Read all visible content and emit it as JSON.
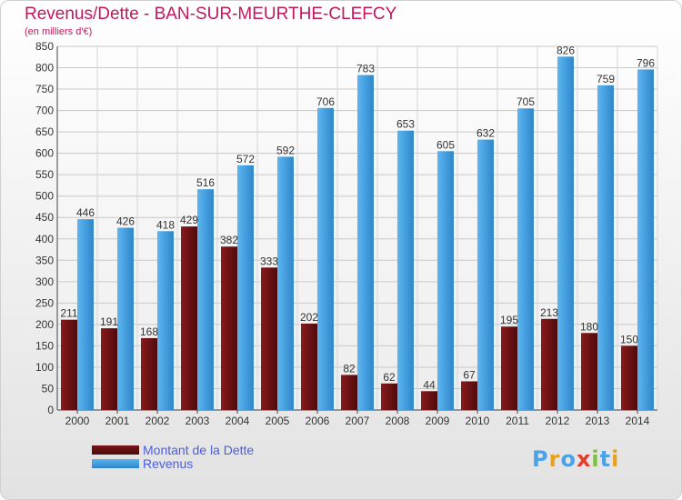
{
  "header": {
    "title": "Revenus/Dette - BAN-SUR-MEURTHE-CLEFCY",
    "subtitle": "(en milliers d'€)"
  },
  "chart_data": {
    "type": "bar",
    "title": "Revenus/Dette - BAN-SUR-MEURTHE-CLEFCY",
    "subtitle": "(en milliers d'€)",
    "xlabel": "",
    "ylabel": "",
    "ylim": [
      0,
      850
    ],
    "ytick_step": 50,
    "grid": true,
    "legend_position": "bottom-left",
    "categories": [
      "2000",
      "2001",
      "2002",
      "2003",
      "2004",
      "2005",
      "2006",
      "2007",
      "2008",
      "2009",
      "2010",
      "2011",
      "2012",
      "2013",
      "2014"
    ],
    "series": [
      {
        "name": "Montant de la Dette",
        "color": "#7a1416",
        "values": [
          211,
          191,
          168,
          429,
          382,
          333,
          202,
          82,
          62,
          44,
          67,
          195,
          213,
          180,
          150
        ]
      },
      {
        "name": "Revenus",
        "color": "#4aa3e6",
        "values": [
          446,
          426,
          418,
          516,
          572,
          592,
          706,
          783,
          653,
          605,
          632,
          705,
          826,
          759,
          796
        ]
      }
    ]
  },
  "legend": {
    "items": [
      {
        "label": "Montant de la Dette",
        "color": "#7a1416"
      },
      {
        "label": "Revenus",
        "color": "#4aa3e6"
      }
    ]
  },
  "logo": {
    "letters": [
      "P",
      "r",
      "o",
      "x",
      "i",
      "t",
      "i"
    ],
    "colors": [
      "#4aa3e6",
      "#e8a020",
      "#4aa3e6",
      "#e83a2a",
      "#7fbf3f",
      "#4aa3e6",
      "#e8a020"
    ]
  }
}
